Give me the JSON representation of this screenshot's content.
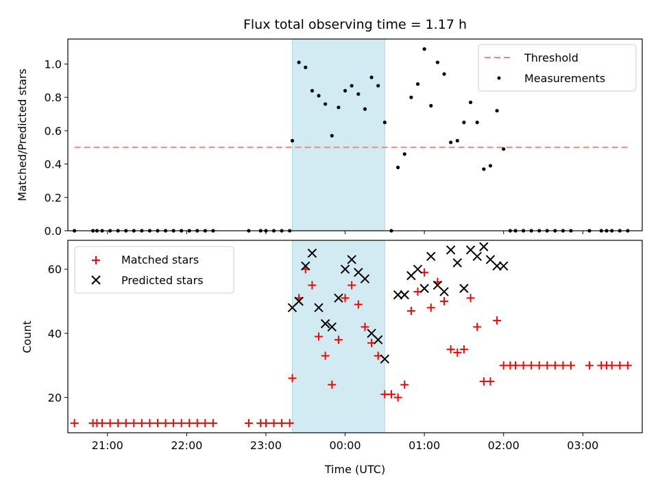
{
  "chart_data": {
    "title": "Flux total observing time = 1.17 h",
    "xlabel": "Time (UTC)",
    "x_tick_labels": [
      "21:00",
      "22:00",
      "23:00",
      "00:00",
      "01:00",
      "02:00",
      "03:00"
    ],
    "x_axis_range": [
      "20:30",
      "03:45"
    ],
    "shaded_interval": [
      "23:20",
      "00:30"
    ],
    "shade_color": "#add8e6",
    "panels": [
      {
        "type": "scatter",
        "ylabel": "Matched/Predicted stars",
        "ylim": [
          0,
          1.15
        ],
        "y_ticks": [
          "0.0",
          "0.2",
          "0.4",
          "0.6",
          "0.8",
          "1.0"
        ],
        "legend_position": "upper right",
        "threshold": {
          "name": "Threshold",
          "value": 0.5,
          "x_range": [
            "20:35",
            "03:35"
          ],
          "style": "dashed",
          "color": "#ff7f7f"
        },
        "series": [
          {
            "name": "Measurements",
            "marker": "dot",
            "color": "#000000",
            "points": [
              [
                "20:35",
                0
              ],
              [
                "20:49",
                0
              ],
              [
                "20:52",
                0
              ],
              [
                "20:56",
                0
              ],
              [
                "21:02",
                0
              ],
              [
                "21:08",
                0
              ],
              [
                "21:14",
                0
              ],
              [
                "21:20",
                0
              ],
              [
                "21:26",
                0
              ],
              [
                "21:32",
                0
              ],
              [
                "21:38",
                0
              ],
              [
                "21:44",
                0
              ],
              [
                "21:50",
                0
              ],
              [
                "21:56",
                0
              ],
              [
                "22:02",
                0
              ],
              [
                "22:08",
                0
              ],
              [
                "22:14",
                0
              ],
              [
                "22:20",
                0
              ],
              [
                "22:47",
                0
              ],
              [
                "22:56",
                0
              ],
              [
                "23:00",
                0
              ],
              [
                "23:06",
                0
              ],
              [
                "23:12",
                0
              ],
              [
                "23:18",
                0
              ],
              [
                "23:20",
                0.54
              ],
              [
                "23:25",
                1.01
              ],
              [
                "23:30",
                0.98
              ],
              [
                "23:35",
                0.84
              ],
              [
                "23:40",
                0.81
              ],
              [
                "23:45",
                0.76
              ],
              [
                "23:50",
                0.57
              ],
              [
                "23:55",
                0.74
              ],
              [
                "00:00",
                0.84
              ],
              [
                "00:05",
                0.87
              ],
              [
                "00:10",
                0.82
              ],
              [
                "00:15",
                0.73
              ],
              [
                "00:20",
                0.92
              ],
              [
                "00:25",
                0.87
              ],
              [
                "00:30",
                0.65
              ],
              [
                "00:35",
                0
              ],
              [
                "00:40",
                0.38
              ],
              [
                "00:45",
                0.46
              ],
              [
                "00:50",
                0.8
              ],
              [
                "00:55",
                0.88
              ],
              [
                "01:00",
                1.09
              ],
              [
                "01:05",
                0.75
              ],
              [
                "01:10",
                1.01
              ],
              [
                "01:15",
                0.94
              ],
              [
                "01:20",
                0.53
              ],
              [
                "01:25",
                0.54
              ],
              [
                "01:30",
                0.65
              ],
              [
                "01:35",
                0.77
              ],
              [
                "01:40",
                0.65
              ],
              [
                "01:45",
                0.37
              ],
              [
                "01:50",
                0.39
              ],
              [
                "01:55",
                0.72
              ],
              [
                "02:00",
                0.49
              ],
              [
                "02:05",
                0
              ],
              [
                "02:09",
                0
              ],
              [
                "02:15",
                0
              ],
              [
                "02:21",
                0
              ],
              [
                "02:27",
                0
              ],
              [
                "02:33",
                0
              ],
              [
                "02:39",
                0
              ],
              [
                "02:45",
                0
              ],
              [
                "02:51",
                0
              ],
              [
                "03:05",
                0
              ],
              [
                "03:14",
                0
              ],
              [
                "03:18",
                0
              ],
              [
                "03:22",
                0
              ],
              [
                "03:28",
                0
              ],
              [
                "03:34",
                0
              ]
            ]
          }
        ]
      },
      {
        "type": "scatter",
        "ylabel": "Count",
        "ylim": [
          9,
          69
        ],
        "y_ticks": [
          "20",
          "40",
          "60"
        ],
        "legend_position": "upper left",
        "series": [
          {
            "name": "Matched stars",
            "marker": "plus",
            "color": "#ff0000",
            "points": [
              [
                "20:35",
                12
              ],
              [
                "20:49",
                12
              ],
              [
                "20:52",
                12
              ],
              [
                "20:56",
                12
              ],
              [
                "21:02",
                12
              ],
              [
                "21:08",
                12
              ],
              [
                "21:14",
                12
              ],
              [
                "21:20",
                12
              ],
              [
                "21:26",
                12
              ],
              [
                "21:32",
                12
              ],
              [
                "21:38",
                12
              ],
              [
                "21:44",
                12
              ],
              [
                "21:50",
                12
              ],
              [
                "21:56",
                12
              ],
              [
                "22:02",
                12
              ],
              [
                "22:08",
                12
              ],
              [
                "22:14",
                12
              ],
              [
                "22:20",
                12
              ],
              [
                "22:47",
                12
              ],
              [
                "22:56",
                12
              ],
              [
                "23:00",
                12
              ],
              [
                "23:06",
                12
              ],
              [
                "23:12",
                12
              ],
              [
                "23:18",
                12
              ],
              [
                "23:20",
                26
              ],
              [
                "23:25",
                51
              ],
              [
                "23:30",
                60
              ],
              [
                "23:35",
                55
              ],
              [
                "23:40",
                39
              ],
              [
                "23:45",
                33
              ],
              [
                "23:50",
                24
              ],
              [
                "23:55",
                38
              ],
              [
                "00:00",
                51
              ],
              [
                "00:05",
                55
              ],
              [
                "00:10",
                49
              ],
              [
                "00:15",
                42
              ],
              [
                "00:20",
                37
              ],
              [
                "00:25",
                33
              ],
              [
                "00:30",
                21
              ],
              [
                "00:35",
                21
              ],
              [
                "00:40",
                20
              ],
              [
                "00:45",
                24
              ],
              [
                "00:50",
                47
              ],
              [
                "00:55",
                53
              ],
              [
                "01:00",
                59
              ],
              [
                "01:05",
                48
              ],
              [
                "01:10",
                56
              ],
              [
                "01:15",
                50
              ],
              [
                "01:20",
                35
              ],
              [
                "01:25",
                34
              ],
              [
                "01:30",
                35
              ],
              [
                "01:35",
                51
              ],
              [
                "01:40",
                42
              ],
              [
                "01:45",
                25
              ],
              [
                "01:50",
                25
              ],
              [
                "01:55",
                44
              ],
              [
                "02:00",
                30
              ],
              [
                "02:05",
                30
              ],
              [
                "02:09",
                30
              ],
              [
                "02:15",
                30
              ],
              [
                "02:21",
                30
              ],
              [
                "02:27",
                30
              ],
              [
                "02:33",
                30
              ],
              [
                "02:39",
                30
              ],
              [
                "02:45",
                30
              ],
              [
                "02:51",
                30
              ],
              [
                "03:05",
                30
              ],
              [
                "03:14",
                30
              ],
              [
                "03:18",
                30
              ],
              [
                "03:22",
                30
              ],
              [
                "03:28",
                30
              ],
              [
                "03:34",
                30
              ]
            ]
          },
          {
            "name": "Predicted stars",
            "marker": "x",
            "color": "#000000",
            "points": [
              [
                "23:20",
                48
              ],
              [
                "23:25",
                50
              ],
              [
                "23:30",
                61
              ],
              [
                "23:35",
                65
              ],
              [
                "23:40",
                48
              ],
              [
                "23:45",
                43
              ],
              [
                "23:50",
                42
              ],
              [
                "23:55",
                51
              ],
              [
                "00:00",
                60
              ],
              [
                "00:05",
                63
              ],
              [
                "00:10",
                59
              ],
              [
                "00:15",
                57
              ],
              [
                "00:20",
                40
              ],
              [
                "00:25",
                38
              ],
              [
                "00:30",
                32
              ],
              [
                "00:40",
                52
              ],
              [
                "00:45",
                52
              ],
              [
                "00:50",
                58
              ],
              [
                "00:55",
                60
              ],
              [
                "01:00",
                54
              ],
              [
                "01:05",
                64
              ],
              [
                "01:10",
                55
              ],
              [
                "01:15",
                53
              ],
              [
                "01:20",
                66
              ],
              [
                "01:25",
                62
              ],
              [
                "01:30",
                54
              ],
              [
                "01:35",
                66
              ],
              [
                "01:40",
                64
              ],
              [
                "01:45",
                67
              ],
              [
                "01:50",
                63
              ],
              [
                "01:55",
                61
              ],
              [
                "02:00",
                61
              ]
            ]
          }
        ]
      }
    ]
  }
}
